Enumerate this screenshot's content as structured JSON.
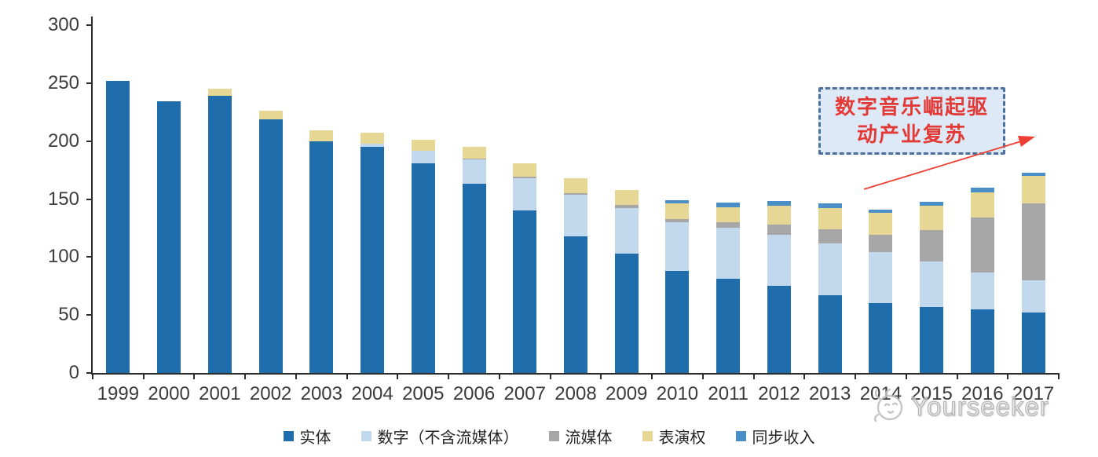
{
  "chart_data": {
    "type": "bar",
    "stacked": true,
    "title": "",
    "xlabel": "",
    "ylabel": "",
    "categories": [
      "1999",
      "2000",
      "2001",
      "2002",
      "2003",
      "2004",
      "2005",
      "2006",
      "2007",
      "2008",
      "2009",
      "2010",
      "2011",
      "2012",
      "2013",
      "2014",
      "2015",
      "2016",
      "2017"
    ],
    "series": [
      {
        "key": "physical",
        "name": "实体",
        "color": "#1f6dab",
        "values": [
          252,
          234,
          239,
          219,
          200,
          195,
          181,
          163,
          140,
          118,
          103,
          88,
          81,
          75,
          67,
          60,
          57,
          55,
          52
        ]
      },
      {
        "key": "digital-excl-streaming",
        "name": "数字（不含流媒体）",
        "color": "#c2d8ec",
        "values": [
          0,
          0,
          0,
          0,
          0,
          3,
          11,
          21,
          28,
          36,
          39,
          42,
          44,
          44,
          45,
          44,
          39,
          32,
          28
        ]
      },
      {
        "key": "streaming",
        "name": "流媒体",
        "color": "#a7a7a7",
        "values": [
          0,
          0,
          0,
          0,
          0,
          0,
          0,
          1,
          1,
          1,
          3,
          3,
          5,
          9,
          12,
          15,
          27,
          47,
          66
        ]
      },
      {
        "key": "performance-rights",
        "name": "表演权",
        "color": "#e7d795",
        "values": [
          0,
          0,
          6,
          7,
          9,
          9,
          9,
          10,
          12,
          13,
          13,
          13,
          13,
          16,
          18,
          19,
          21,
          22,
          24
        ]
      },
      {
        "key": "sync-revenue",
        "name": "同步收入",
        "color": "#4a8fc8",
        "values": [
          0,
          0,
          0,
          0,
          0,
          0,
          0,
          0,
          0,
          0,
          0,
          3,
          4,
          4,
          4,
          3,
          4,
          4,
          3
        ]
      }
    ],
    "ylim": [
      0,
      300
    ],
    "yticks": [
      0,
      50,
      100,
      150,
      200,
      250,
      300
    ],
    "grid": false,
    "legend_position": "bottom"
  },
  "annotation": {
    "line1": "数字音乐崛起驱",
    "line2": "动产业复苏",
    "text_color": "#e23a36",
    "border_color": "#4d6f9c",
    "fill_color": "#dde9f7",
    "arrow_color": "#ed3e33"
  },
  "watermark": {
    "text": "Yourseeker"
  }
}
